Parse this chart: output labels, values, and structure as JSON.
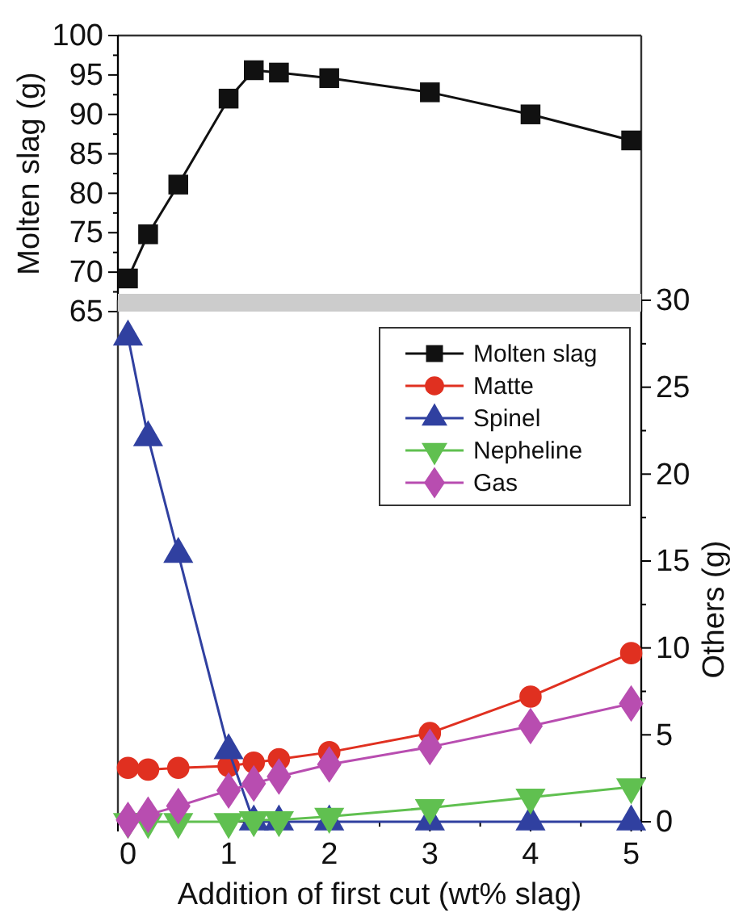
{
  "chart_data": [
    {
      "type": "line",
      "ylabel": "Molten slag (g)",
      "x": [
        0,
        0.2,
        0.5,
        1,
        1.25,
        1.5,
        2,
        3,
        4,
        5
      ],
      "series": [
        {
          "name": "Molten slag",
          "color": "#111111",
          "marker": "square",
          "values": [
            69.2,
            74.8,
            81.1,
            92,
            95.6,
            95.3,
            94.6,
            92.8,
            90,
            86.7
          ]
        }
      ],
      "xlim": [
        -0.1,
        5.1
      ],
      "ylim": [
        65,
        100
      ],
      "yticks": [
        65,
        {
          "value": 67.5,
          "label": null
        },
        70,
        {
          "value": 72.5,
          "label": null
        },
        75,
        {
          "value": 77.5,
          "label": null
        },
        80,
        {
          "value": 82.5,
          "label": null
        },
        85,
        {
          "value": 87.5,
          "label": null
        },
        90,
        {
          "value": 92.5,
          "label": null
        },
        95,
        {
          "value": 97.5,
          "label": null
        },
        100
      ],
      "tick_labels": "y",
      "grid": false
    },
    {
      "type": "line",
      "xlabel": "Addition of first cut (wt% slag)",
      "y2label": "Others (g)",
      "x": [
        0,
        0.2,
        0.5,
        1,
        1.25,
        1.5,
        2,
        3,
        4,
        5
      ],
      "series": [
        {
          "name": "Matte",
          "color": "#e03020",
          "marker": "circle",
          "axis": "y2",
          "values": [
            3.1,
            3.0,
            3.1,
            3.2,
            3.4,
            3.6,
            4.0,
            5.1,
            7.2,
            9.7
          ]
        },
        {
          "name": "Spinel",
          "color": "#3040a0",
          "marker": "triangle",
          "axis": "y2",
          "values": [
            27.9,
            22.1,
            15.4,
            4.1,
            0,
            0,
            0,
            0,
            0,
            0
          ]
        },
        {
          "name": "Nepheline",
          "color": "#60c050",
          "marker": "triangle-down",
          "axis": "y2",
          "values": [
            0,
            0,
            0,
            0,
            0.1,
            0.1,
            0.3,
            0.8,
            1.4,
            2.0
          ]
        },
        {
          "name": "Gas",
          "color": "#b84db0",
          "marker": "diamond",
          "axis": "y2",
          "values": [
            0.1,
            0.4,
            0.9,
            1.8,
            2.2,
            2.6,
            3.3,
            4.3,
            5.5,
            6.8
          ]
        }
      ],
      "xlim": [
        -0.1,
        5.1
      ],
      "xticks": [
        0,
        {
          "value": 0.5,
          "label": null
        },
        1,
        {
          "value": 1.5,
          "label": null
        },
        2,
        {
          "value": 2.5,
          "label": null
        },
        3,
        {
          "value": 3.5,
          "label": null
        },
        4,
        {
          "value": 4.5,
          "label": null
        },
        5
      ],
      "y2lim": [
        0,
        30
      ],
      "y2ticks": [
        0,
        {
          "value": 2.5,
          "label": null
        },
        5,
        {
          "value": 7.5,
          "label": null
        },
        10,
        {
          "value": 12.5,
          "label": null
        },
        15,
        {
          "value": 17.5,
          "label": null
        },
        20,
        {
          "value": 22.5,
          "label": null
        },
        25,
        {
          "value": 27.5,
          "label": null
        },
        30
      ],
      "legend": "top right",
      "grid": false
    }
  ]
}
